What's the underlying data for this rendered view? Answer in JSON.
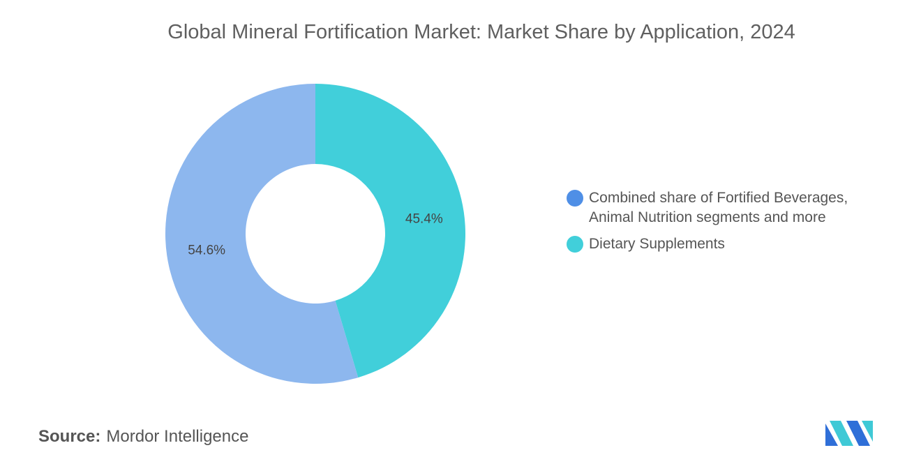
{
  "chart_data": {
    "type": "pie",
    "title": "Global Mineral Fortification Market: Market Share by Application, 2024",
    "slices": [
      {
        "label": "Combined share of Fortified Beverages, Animal Nutrition segments and more",
        "value": 54.6,
        "display": "54.6%",
        "color": "#8db7ee",
        "legend_color": "#4f8fe6"
      },
      {
        "label": "Dietary Supplements",
        "value": 45.4,
        "display": "45.4%",
        "color": "#41cfda",
        "legend_color": "#41cfda"
      }
    ],
    "legend_position": "right",
    "donut": true
  },
  "source": {
    "label": "Source:",
    "text": "Mordor Intelligence"
  },
  "logo": {
    "icon": "mordor-intelligence-logo-icon",
    "colors": [
      "#2f6fd8",
      "#3fc9d6"
    ]
  }
}
